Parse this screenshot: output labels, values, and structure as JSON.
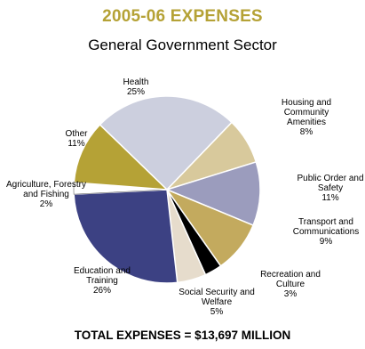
{
  "header": {
    "title": "2005-06 EXPENSES",
    "subtitle": "General Government Sector"
  },
  "footer": {
    "total": "TOTAL EXPENSES = $13,697 MILLION"
  },
  "colors": {
    "title": "#b5a236"
  },
  "chart_data": {
    "type": "pie",
    "title": "2005-06 EXPENSES",
    "subtitle": "General Government Sector",
    "unit": "%",
    "slices": [
      {
        "label": "Health",
        "value": 25,
        "color": "#cccfde",
        "label_lines": [
          "Health",
          "25%"
        ]
      },
      {
        "label": "Housing and Community Amenities",
        "value": 8,
        "color": "#d8c99c",
        "label_lines": [
          "Housing and",
          "Community",
          "Amenities",
          "8%"
        ]
      },
      {
        "label": "Public Order and Safety",
        "value": 11,
        "color": "#9b9cbd",
        "label_lines": [
          "Public Order and",
          "Safety",
          "11%"
        ]
      },
      {
        "label": "Transport and Communications",
        "value": 9,
        "color": "#c3aa5e",
        "label_lines": [
          "Transport and",
          "Communications",
          "9%"
        ]
      },
      {
        "label": "Recreation and Culture",
        "value": 3,
        "color": "#000000",
        "label_lines": [
          "Recreation and",
          "Culture",
          "3%"
        ]
      },
      {
        "label": "Social Security and Welfare",
        "value": 5,
        "color": "#e6dccc",
        "label_lines": [
          "Social Security  and",
          "Welfare",
          "5%"
        ]
      },
      {
        "label": "Education and Training",
        "value": 26,
        "color": "#3c4183",
        "label_lines": [
          "Education and",
          "Training",
          "26%"
        ]
      },
      {
        "label": "Agriculture, Forestry and Fishing",
        "value": 2,
        "color": "#ffffff",
        "label_lines": [
          "Agriculture, Forestry",
          "and Fishing",
          "2%"
        ]
      },
      {
        "label": "Other",
        "value": 11,
        "color": "#b5a236",
        "label_lines": [
          "Other",
          "11%"
        ]
      }
    ]
  }
}
